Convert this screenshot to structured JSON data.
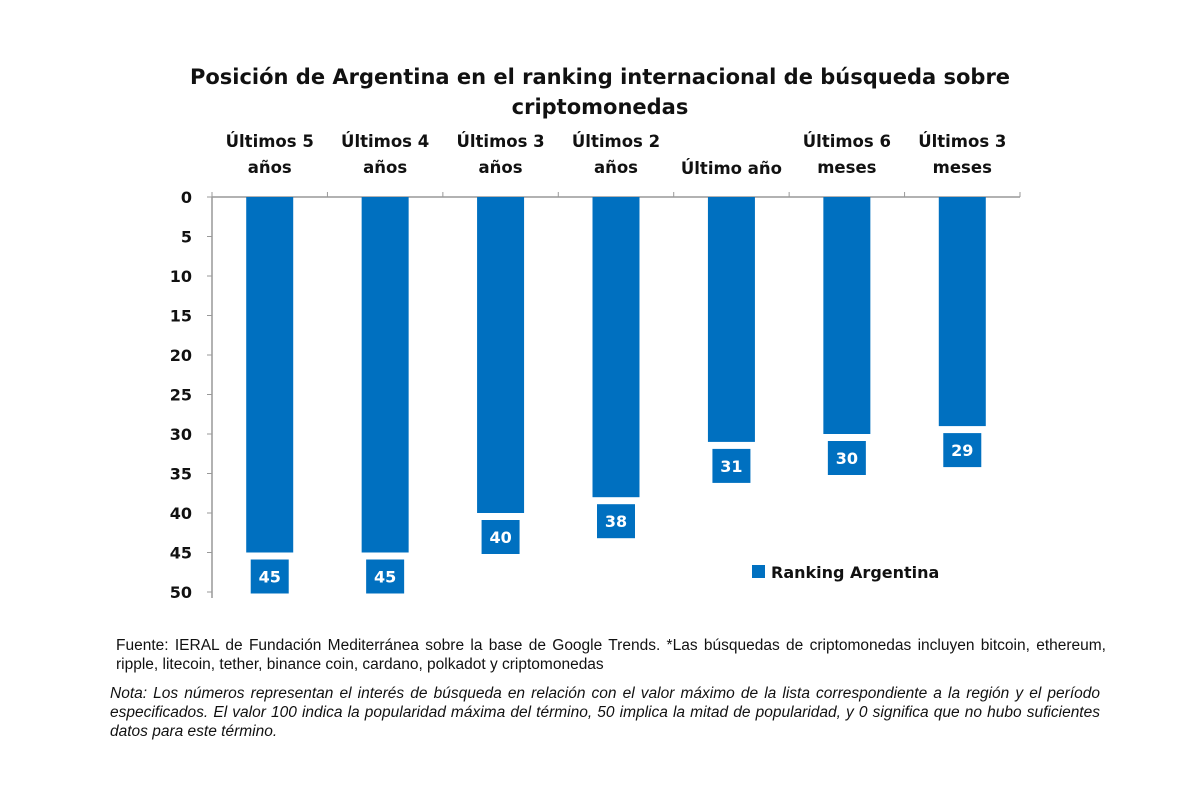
{
  "chart_data": {
    "type": "bar",
    "title": "Posición de Argentina en el ranking internacional de búsqueda sobre criptomonedas",
    "title_lines": [
      "Posición de Argentina en el ranking internacional de búsqueda sobre",
      "criptomonedas"
    ],
    "categories": [
      [
        "Últimos 5",
        "años"
      ],
      [
        "Últimos 4",
        "años"
      ],
      [
        "Últimos 3",
        "años"
      ],
      [
        "Últimos 2",
        "años"
      ],
      [
        "Último año"
      ],
      [
        "Últimos 6",
        "meses"
      ],
      [
        "Últimos 3",
        "meses"
      ]
    ],
    "series": [
      {
        "name": "Ranking Argentina",
        "values": [
          45,
          45,
          40,
          38,
          31,
          30,
          29
        ],
        "color": "#0070C0"
      }
    ],
    "ylim": [
      0,
      50
    ],
    "y_inverted": true,
    "yticks": [
      0,
      5,
      10,
      15,
      20,
      25,
      30,
      35,
      40,
      45,
      50
    ],
    "x_axis_position": "top",
    "grid": false,
    "legend_position": "bottom-right",
    "xlabel": "",
    "ylabel": ""
  },
  "notes": {
    "source": "Fuente: IERAL de Fundación Mediterránea sobre la base de Google Trends. *Las búsquedas de criptomonedas incluyen bitcoin, ethereum, ripple, litecoin, tether, binance coin, cardano, polkadot y criptomonedas",
    "nota": "Nota: Los números representan el interés de búsqueda en relación con el valor máximo de la lista correspondiente a la región y el período especificados. El valor 100 indica la popularidad máxima del término, 50 implica la mitad de popularidad, y 0 significa que no hubo suficientes datos para este término."
  }
}
